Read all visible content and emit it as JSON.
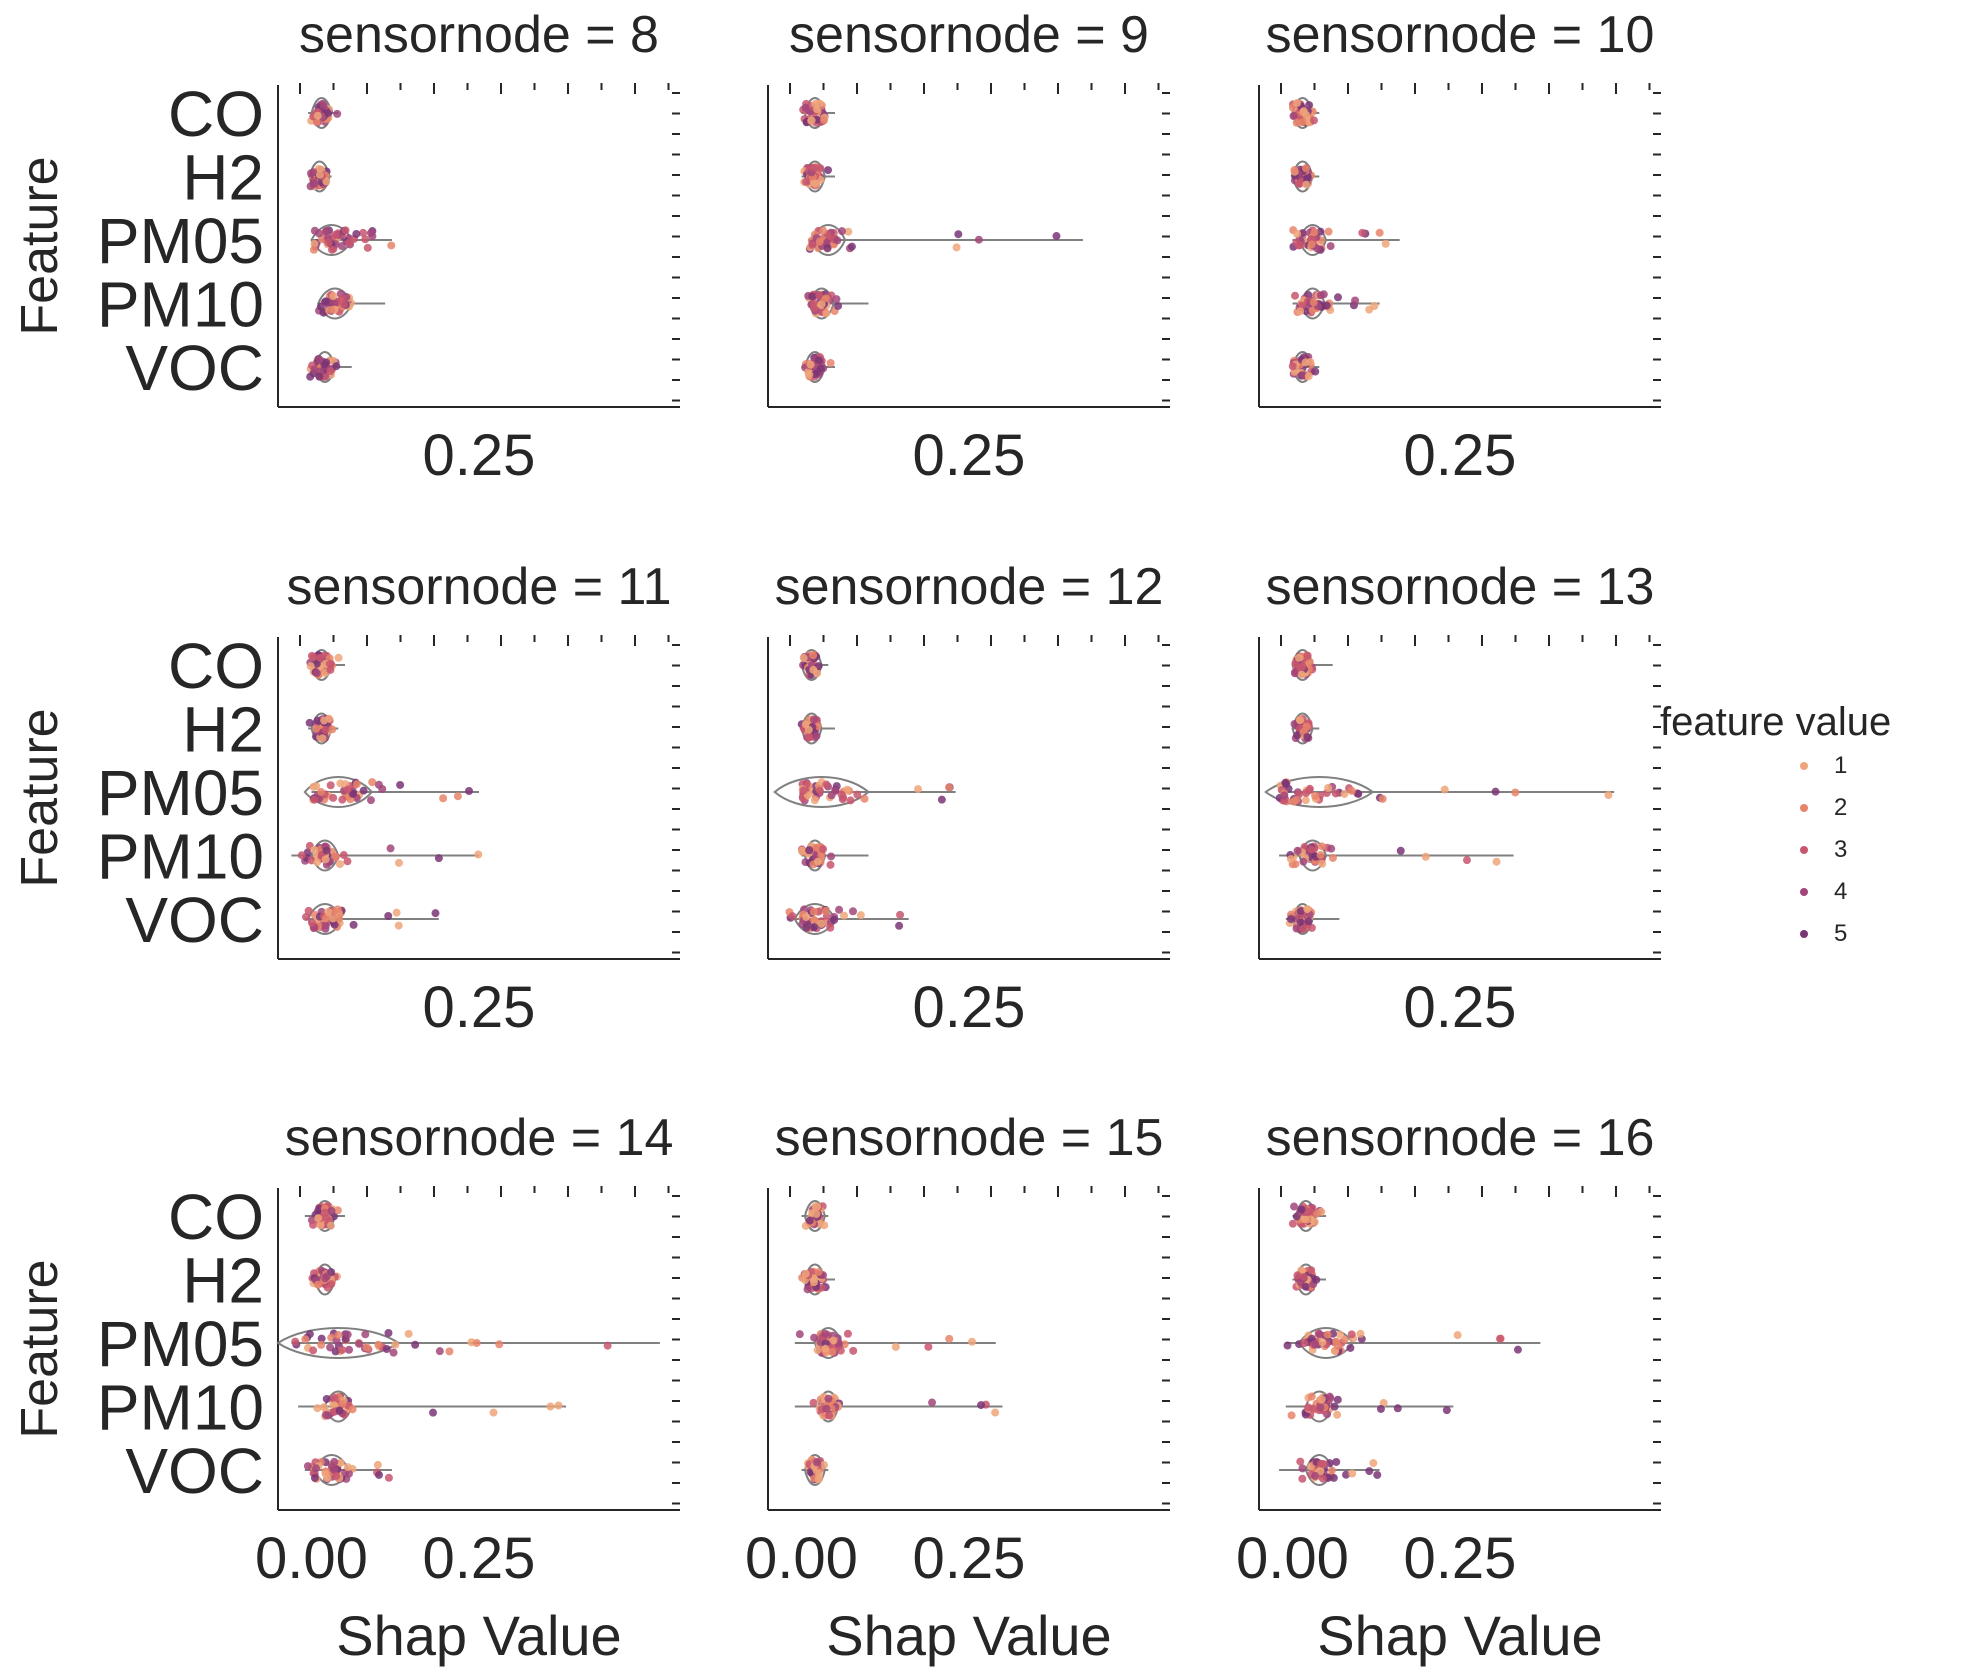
{
  "chart_data": {
    "type": "violin-strip facet grid",
    "facet_label_prefix": "sensornode = ",
    "facets": [
      8,
      9,
      10,
      11,
      12,
      13,
      14,
      15,
      16
    ],
    "features": [
      "CO",
      "H2",
      "PM05",
      "PM10",
      "VOC"
    ],
    "ylabel": "Feature",
    "xlabel": "Shap Value",
    "x_ticks": [
      {
        "value": 0.0,
        "label": "0.00"
      },
      {
        "value": 0.25,
        "label": "0.25"
      }
    ],
    "xlim": [
      -0.05,
      0.55
    ],
    "legend": {
      "title": "feature value",
      "placement": "right",
      "entries": [
        {
          "label": "1",
          "color": "#efa57a"
        },
        {
          "label": "2",
          "color": "#e8846a"
        },
        {
          "label": "3",
          "color": "#c8566f"
        },
        {
          "label": "4",
          "color": "#a2467a"
        },
        {
          "label": "5",
          "color": "#7a3575"
        }
      ]
    },
    "violin_color": "#808080",
    "panels": [
      {
        "node": 8,
        "rows": [
          {
            "feature": "CO",
            "center": 0.015,
            "min": -0.005,
            "max": 0.04,
            "spread": 0.012
          },
          {
            "feature": "H2",
            "center": 0.012,
            "min": -0.005,
            "max": 0.03,
            "spread": 0.01
          },
          {
            "feature": "PM05",
            "center": 0.03,
            "min": 0.0,
            "max": 0.12,
            "spread": 0.03
          },
          {
            "feature": "PM10",
            "center": 0.035,
            "min": 0.01,
            "max": 0.11,
            "spread": 0.025
          },
          {
            "feature": "VOC",
            "center": 0.02,
            "min": -0.005,
            "max": 0.06,
            "spread": 0.015
          }
        ]
      },
      {
        "node": 9,
        "rows": [
          {
            "feature": "CO",
            "center": 0.02,
            "min": 0.0,
            "max": 0.05,
            "spread": 0.012
          },
          {
            "feature": "H2",
            "center": 0.02,
            "min": 0.0,
            "max": 0.05,
            "spread": 0.012
          },
          {
            "feature": "PM05",
            "center": 0.04,
            "min": 0.01,
            "max": 0.42,
            "spread": 0.025
          },
          {
            "feature": "PM10",
            "center": 0.03,
            "min": 0.01,
            "max": 0.1,
            "spread": 0.018
          },
          {
            "feature": "VOC",
            "center": 0.02,
            "min": 0.0,
            "max": 0.05,
            "spread": 0.012
          }
        ]
      },
      {
        "node": 10,
        "rows": [
          {
            "feature": "CO",
            "center": 0.015,
            "min": 0.0,
            "max": 0.04,
            "spread": 0.012
          },
          {
            "feature": "H2",
            "center": 0.015,
            "min": 0.0,
            "max": 0.04,
            "spread": 0.01
          },
          {
            "feature": "PM05",
            "center": 0.03,
            "min": 0.0,
            "max": 0.16,
            "spread": 0.02
          },
          {
            "feature": "PM10",
            "center": 0.03,
            "min": 0.0,
            "max": 0.13,
            "spread": 0.018
          },
          {
            "feature": "VOC",
            "center": 0.015,
            "min": 0.0,
            "max": 0.04,
            "spread": 0.012
          }
        ]
      },
      {
        "node": 11,
        "rows": [
          {
            "feature": "CO",
            "center": 0.015,
            "min": -0.005,
            "max": 0.05,
            "spread": 0.012
          },
          {
            "feature": "H2",
            "center": 0.015,
            "min": -0.005,
            "max": 0.04,
            "spread": 0.01
          },
          {
            "feature": "PM05",
            "center": 0.04,
            "min": 0.0,
            "max": 0.25,
            "spread": 0.05
          },
          {
            "feature": "PM10",
            "center": 0.02,
            "min": -0.03,
            "max": 0.25,
            "spread": 0.02
          },
          {
            "feature": "VOC",
            "center": 0.02,
            "min": -0.01,
            "max": 0.19,
            "spread": 0.025
          }
        ]
      },
      {
        "node": 12,
        "rows": [
          {
            "feature": "CO",
            "center": 0.015,
            "min": 0.0,
            "max": 0.04,
            "spread": 0.01
          },
          {
            "feature": "H2",
            "center": 0.015,
            "min": 0.0,
            "max": 0.05,
            "spread": 0.01
          },
          {
            "feature": "PM05",
            "center": 0.03,
            "min": 0.0,
            "max": 0.23,
            "spread": 0.07
          },
          {
            "feature": "PM10",
            "center": 0.02,
            "min": 0.0,
            "max": 0.1,
            "spread": 0.015
          },
          {
            "feature": "VOC",
            "center": 0.02,
            "min": -0.02,
            "max": 0.16,
            "spread": 0.03
          }
        ]
      },
      {
        "node": 13,
        "rows": [
          {
            "feature": "CO",
            "center": 0.015,
            "min": 0.0,
            "max": 0.06,
            "spread": 0.01
          },
          {
            "feature": "H2",
            "center": 0.015,
            "min": 0.0,
            "max": 0.04,
            "spread": 0.008
          },
          {
            "feature": "PM05",
            "center": 0.04,
            "min": -0.02,
            "max": 0.48,
            "spread": 0.08
          },
          {
            "feature": "PM10",
            "center": 0.03,
            "min": -0.02,
            "max": 0.33,
            "spread": 0.02
          },
          {
            "feature": "VOC",
            "center": 0.015,
            "min": -0.01,
            "max": 0.07,
            "spread": 0.012
          }
        ]
      },
      {
        "node": 14,
        "rows": [
          {
            "feature": "CO",
            "center": 0.02,
            "min": -0.01,
            "max": 0.05,
            "spread": 0.012
          },
          {
            "feature": "H2",
            "center": 0.02,
            "min": 0.0,
            "max": 0.04,
            "spread": 0.01
          },
          {
            "feature": "PM05",
            "center": 0.04,
            "min": -0.03,
            "max": 0.52,
            "spread": 0.09
          },
          {
            "feature": "PM10",
            "center": 0.04,
            "min": -0.02,
            "max": 0.38,
            "spread": 0.02
          },
          {
            "feature": "VOC",
            "center": 0.03,
            "min": -0.01,
            "max": 0.12,
            "spread": 0.025
          }
        ]
      },
      {
        "node": 15,
        "rows": [
          {
            "feature": "CO",
            "center": 0.02,
            "min": 0.0,
            "max": 0.04,
            "spread": 0.008
          },
          {
            "feature": "H2",
            "center": 0.02,
            "min": 0.0,
            "max": 0.05,
            "spread": 0.01
          },
          {
            "feature": "PM05",
            "center": 0.04,
            "min": -0.01,
            "max": 0.29,
            "spread": 0.02
          },
          {
            "feature": "PM10",
            "center": 0.04,
            "min": -0.01,
            "max": 0.3,
            "spread": 0.015
          },
          {
            "feature": "VOC",
            "center": 0.02,
            "min": 0.0,
            "max": 0.04,
            "spread": 0.008
          }
        ]
      },
      {
        "node": 16,
        "rows": [
          {
            "feature": "CO",
            "center": 0.02,
            "min": 0.0,
            "max": 0.05,
            "spread": 0.012
          },
          {
            "feature": "H2",
            "center": 0.02,
            "min": 0.0,
            "max": 0.05,
            "spread": 0.01
          },
          {
            "feature": "PM05",
            "center": 0.05,
            "min": -0.01,
            "max": 0.37,
            "spread": 0.04
          },
          {
            "feature": "PM10",
            "center": 0.04,
            "min": -0.01,
            "max": 0.24,
            "spread": 0.02
          },
          {
            "feature": "VOC",
            "center": 0.04,
            "min": -0.02,
            "max": 0.13,
            "spread": 0.02
          }
        ]
      }
    ]
  }
}
